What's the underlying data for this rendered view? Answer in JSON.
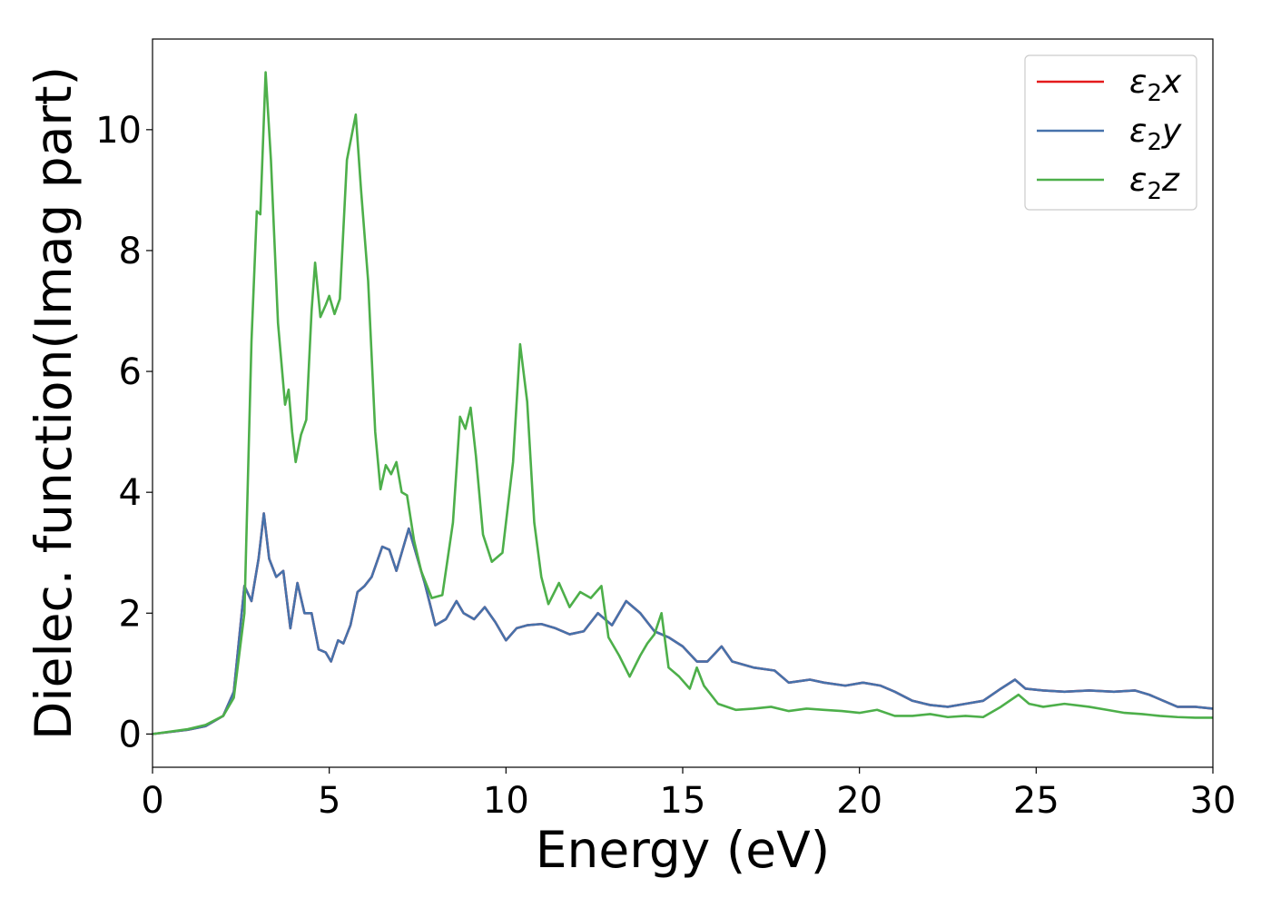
{
  "chart_data": {
    "type": "line",
    "title": "",
    "xlabel": "Energy (eV)",
    "ylabel": "Dielec. function(Imag part)",
    "xlim": [
      0,
      30
    ],
    "ylim": [
      -0.55,
      11.5
    ],
    "xticks": [
      0,
      5,
      10,
      15,
      20,
      25,
      30
    ],
    "yticks": [
      0,
      2,
      4,
      6,
      8,
      10
    ],
    "grid": false,
    "legend_position": "top-right",
    "series": [
      {
        "name": "ε₂x",
        "legend_main": "ε",
        "legend_sub": "2",
        "legend_axis": "x",
        "color": "#e41a1c",
        "points": [
          [
            0,
            0
          ],
          [
            1,
            0.07
          ],
          [
            1.5,
            0.13
          ],
          [
            2,
            0.3
          ],
          [
            2.3,
            0.7
          ],
          [
            2.6,
            2.45
          ],
          [
            2.8,
            2.2
          ],
          [
            3,
            2.9
          ],
          [
            3.15,
            3.65
          ],
          [
            3.3,
            2.9
          ],
          [
            3.5,
            2.6
          ],
          [
            3.7,
            2.7
          ],
          [
            3.9,
            1.75
          ],
          [
            4.1,
            2.5
          ],
          [
            4.3,
            2.0
          ],
          [
            4.5,
            2.0
          ],
          [
            4.7,
            1.4
          ],
          [
            4.9,
            1.35
          ],
          [
            5.05,
            1.2
          ],
          [
            5.25,
            1.55
          ],
          [
            5.4,
            1.5
          ],
          [
            5.6,
            1.8
          ],
          [
            5.8,
            2.35
          ],
          [
            6.0,
            2.45
          ],
          [
            6.2,
            2.6
          ],
          [
            6.5,
            3.1
          ],
          [
            6.7,
            3.05
          ],
          [
            6.9,
            2.7
          ],
          [
            7.1,
            3.1
          ],
          [
            7.25,
            3.4
          ],
          [
            7.5,
            2.9
          ],
          [
            7.7,
            2.5
          ],
          [
            8.0,
            1.8
          ],
          [
            8.3,
            1.9
          ],
          [
            8.6,
            2.2
          ],
          [
            8.8,
            2.0
          ],
          [
            9.1,
            1.9
          ],
          [
            9.4,
            2.1
          ],
          [
            9.7,
            1.85
          ],
          [
            10.0,
            1.55
          ],
          [
            10.3,
            1.75
          ],
          [
            10.6,
            1.8
          ],
          [
            11.0,
            1.82
          ],
          [
            11.4,
            1.75
          ],
          [
            11.8,
            1.65
          ],
          [
            12.2,
            1.7
          ],
          [
            12.6,
            2.0
          ],
          [
            13.0,
            1.8
          ],
          [
            13.4,
            2.2
          ],
          [
            13.8,
            2.0
          ],
          [
            14.2,
            1.7
          ],
          [
            14.6,
            1.6
          ],
          [
            15.0,
            1.45
          ],
          [
            15.4,
            1.2
          ],
          [
            15.7,
            1.2
          ],
          [
            16.1,
            1.45
          ],
          [
            16.4,
            1.2
          ],
          [
            17.0,
            1.1
          ],
          [
            17.6,
            1.05
          ],
          [
            18.0,
            0.85
          ],
          [
            18.6,
            0.9
          ],
          [
            19.0,
            0.85
          ],
          [
            19.6,
            0.8
          ],
          [
            20.1,
            0.85
          ],
          [
            20.6,
            0.8
          ],
          [
            21.0,
            0.7
          ],
          [
            21.5,
            0.55
          ],
          [
            22.0,
            0.48
          ],
          [
            22.5,
            0.45
          ],
          [
            23.0,
            0.5
          ],
          [
            23.5,
            0.55
          ],
          [
            24.0,
            0.75
          ],
          [
            24.4,
            0.9
          ],
          [
            24.7,
            0.75
          ],
          [
            25.2,
            0.72
          ],
          [
            25.8,
            0.7
          ],
          [
            26.5,
            0.72
          ],
          [
            27.2,
            0.7
          ],
          [
            27.8,
            0.72
          ],
          [
            28.2,
            0.65
          ],
          [
            28.6,
            0.55
          ],
          [
            29.0,
            0.45
          ],
          [
            29.5,
            0.45
          ],
          [
            30,
            0.42
          ]
        ]
      },
      {
        "name": "ε₂y",
        "legend_main": "ε",
        "legend_sub": "2",
        "legend_axis": "y",
        "color": "#4672ab",
        "points": [
          [
            0,
            0
          ],
          [
            1,
            0.07
          ],
          [
            1.5,
            0.13
          ],
          [
            2,
            0.3
          ],
          [
            2.3,
            0.7
          ],
          [
            2.6,
            2.45
          ],
          [
            2.8,
            2.2
          ],
          [
            3,
            2.9
          ],
          [
            3.15,
            3.65
          ],
          [
            3.3,
            2.9
          ],
          [
            3.5,
            2.6
          ],
          [
            3.7,
            2.7
          ],
          [
            3.9,
            1.75
          ],
          [
            4.1,
            2.5
          ],
          [
            4.3,
            2.0
          ],
          [
            4.5,
            2.0
          ],
          [
            4.7,
            1.4
          ],
          [
            4.9,
            1.35
          ],
          [
            5.05,
            1.2
          ],
          [
            5.25,
            1.55
          ],
          [
            5.4,
            1.5
          ],
          [
            5.6,
            1.8
          ],
          [
            5.8,
            2.35
          ],
          [
            6.0,
            2.45
          ],
          [
            6.2,
            2.6
          ],
          [
            6.5,
            3.1
          ],
          [
            6.7,
            3.05
          ],
          [
            6.9,
            2.7
          ],
          [
            7.1,
            3.1
          ],
          [
            7.25,
            3.4
          ],
          [
            7.5,
            2.9
          ],
          [
            7.7,
            2.5
          ],
          [
            8.0,
            1.8
          ],
          [
            8.3,
            1.9
          ],
          [
            8.6,
            2.2
          ],
          [
            8.8,
            2.0
          ],
          [
            9.1,
            1.9
          ],
          [
            9.4,
            2.1
          ],
          [
            9.7,
            1.85
          ],
          [
            10.0,
            1.55
          ],
          [
            10.3,
            1.75
          ],
          [
            10.6,
            1.8
          ],
          [
            11.0,
            1.82
          ],
          [
            11.4,
            1.75
          ],
          [
            11.8,
            1.65
          ],
          [
            12.2,
            1.7
          ],
          [
            12.6,
            2.0
          ],
          [
            13.0,
            1.8
          ],
          [
            13.4,
            2.2
          ],
          [
            13.8,
            2.0
          ],
          [
            14.2,
            1.7
          ],
          [
            14.6,
            1.6
          ],
          [
            15.0,
            1.45
          ],
          [
            15.4,
            1.2
          ],
          [
            15.7,
            1.2
          ],
          [
            16.1,
            1.45
          ],
          [
            16.4,
            1.2
          ],
          [
            17.0,
            1.1
          ],
          [
            17.6,
            1.05
          ],
          [
            18.0,
            0.85
          ],
          [
            18.6,
            0.9
          ],
          [
            19.0,
            0.85
          ],
          [
            19.6,
            0.8
          ],
          [
            20.1,
            0.85
          ],
          [
            20.6,
            0.8
          ],
          [
            21.0,
            0.7
          ],
          [
            21.5,
            0.55
          ],
          [
            22.0,
            0.48
          ],
          [
            22.5,
            0.45
          ],
          [
            23.0,
            0.5
          ],
          [
            23.5,
            0.55
          ],
          [
            24.0,
            0.75
          ],
          [
            24.4,
            0.9
          ],
          [
            24.7,
            0.75
          ],
          [
            25.2,
            0.72
          ],
          [
            25.8,
            0.7
          ],
          [
            26.5,
            0.72
          ],
          [
            27.2,
            0.7
          ],
          [
            27.8,
            0.72
          ],
          [
            28.2,
            0.65
          ],
          [
            28.6,
            0.55
          ],
          [
            29.0,
            0.45
          ],
          [
            29.5,
            0.45
          ],
          [
            30,
            0.42
          ]
        ]
      },
      {
        "name": "ε₂z",
        "legend_main": "ε",
        "legend_sub": "2",
        "legend_axis": "z",
        "color": "#4daf4a",
        "points": [
          [
            0,
            0
          ],
          [
            1,
            0.08
          ],
          [
            1.5,
            0.15
          ],
          [
            2,
            0.3
          ],
          [
            2.3,
            0.6
          ],
          [
            2.6,
            2.0
          ],
          [
            2.8,
            6.5
          ],
          [
            2.95,
            8.65
          ],
          [
            3.05,
            8.6
          ],
          [
            3.2,
            10.95
          ],
          [
            3.35,
            9.5
          ],
          [
            3.55,
            6.8
          ],
          [
            3.75,
            5.45
          ],
          [
            3.85,
            5.7
          ],
          [
            3.95,
            5.0
          ],
          [
            4.05,
            4.5
          ],
          [
            4.2,
            4.95
          ],
          [
            4.35,
            5.2
          ],
          [
            4.5,
            7.0
          ],
          [
            4.6,
            7.8
          ],
          [
            4.75,
            6.9
          ],
          [
            4.9,
            7.1
          ],
          [
            5.0,
            7.25
          ],
          [
            5.15,
            6.95
          ],
          [
            5.3,
            7.2
          ],
          [
            5.5,
            9.5
          ],
          [
            5.75,
            10.25
          ],
          [
            5.9,
            9.0
          ],
          [
            6.1,
            7.5
          ],
          [
            6.3,
            5.0
          ],
          [
            6.45,
            4.05
          ],
          [
            6.6,
            4.45
          ],
          [
            6.75,
            4.3
          ],
          [
            6.9,
            4.5
          ],
          [
            7.05,
            4.0
          ],
          [
            7.2,
            3.95
          ],
          [
            7.4,
            3.2
          ],
          [
            7.6,
            2.7
          ],
          [
            7.9,
            2.25
          ],
          [
            8.2,
            2.3
          ],
          [
            8.5,
            3.5
          ],
          [
            8.7,
            5.25
          ],
          [
            8.85,
            5.05
          ],
          [
            9.0,
            5.4
          ],
          [
            9.15,
            4.6
          ],
          [
            9.35,
            3.3
          ],
          [
            9.6,
            2.85
          ],
          [
            9.9,
            3.0
          ],
          [
            10.2,
            4.5
          ],
          [
            10.4,
            6.45
          ],
          [
            10.6,
            5.5
          ],
          [
            10.8,
            3.5
          ],
          [
            11.0,
            2.6
          ],
          [
            11.2,
            2.15
          ],
          [
            11.5,
            2.5
          ],
          [
            11.8,
            2.1
          ],
          [
            12.1,
            2.35
          ],
          [
            12.4,
            2.25
          ],
          [
            12.7,
            2.45
          ],
          [
            12.9,
            1.6
          ],
          [
            13.2,
            1.3
          ],
          [
            13.5,
            0.95
          ],
          [
            13.8,
            1.3
          ],
          [
            14.0,
            1.5
          ],
          [
            14.2,
            1.65
          ],
          [
            14.4,
            2.0
          ],
          [
            14.6,
            1.1
          ],
          [
            14.9,
            0.95
          ],
          [
            15.2,
            0.75
          ],
          [
            15.4,
            1.1
          ],
          [
            15.6,
            0.8
          ],
          [
            16.0,
            0.5
          ],
          [
            16.5,
            0.4
          ],
          [
            17.0,
            0.42
          ],
          [
            17.5,
            0.45
          ],
          [
            18.0,
            0.38
          ],
          [
            18.5,
            0.42
          ],
          [
            19.0,
            0.4
          ],
          [
            19.5,
            0.38
          ],
          [
            20.0,
            0.35
          ],
          [
            20.5,
            0.4
          ],
          [
            21.0,
            0.3
          ],
          [
            21.5,
            0.3
          ],
          [
            22.0,
            0.33
          ],
          [
            22.5,
            0.28
          ],
          [
            23.0,
            0.3
          ],
          [
            23.5,
            0.28
          ],
          [
            24.0,
            0.45
          ],
          [
            24.5,
            0.65
          ],
          [
            24.8,
            0.5
          ],
          [
            25.2,
            0.45
          ],
          [
            25.8,
            0.5
          ],
          [
            26.5,
            0.45
          ],
          [
            27.0,
            0.4
          ],
          [
            27.5,
            0.35
          ],
          [
            28.0,
            0.33
          ],
          [
            28.5,
            0.3
          ],
          [
            29.0,
            0.28
          ],
          [
            29.5,
            0.27
          ],
          [
            30,
            0.27
          ]
        ]
      }
    ]
  }
}
